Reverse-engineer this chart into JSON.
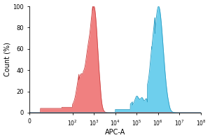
{
  "title": "",
  "xlabel": "APC-A",
  "ylabel": "Count (%)",
  "ylim": [
    0,
    100
  ],
  "yticks": [
    0,
    20,
    40,
    60,
    80,
    100
  ],
  "xtick_positions": [
    0,
    2,
    3,
    4,
    5,
    6,
    7,
    8
  ],
  "xtick_labels": [
    "0",
    "$10^2$",
    "$10^3$",
    "$10^4$",
    "$10^5$",
    "$10^6$",
    "$10^7$",
    "$10^8$"
  ],
  "xlim": [
    0,
    8
  ],
  "red_color": "#F08080",
  "red_edge": "#CC4444",
  "blue_color": "#6ECFED",
  "blue_edge": "#2A9DC4",
  "background_color": "#ffffff"
}
